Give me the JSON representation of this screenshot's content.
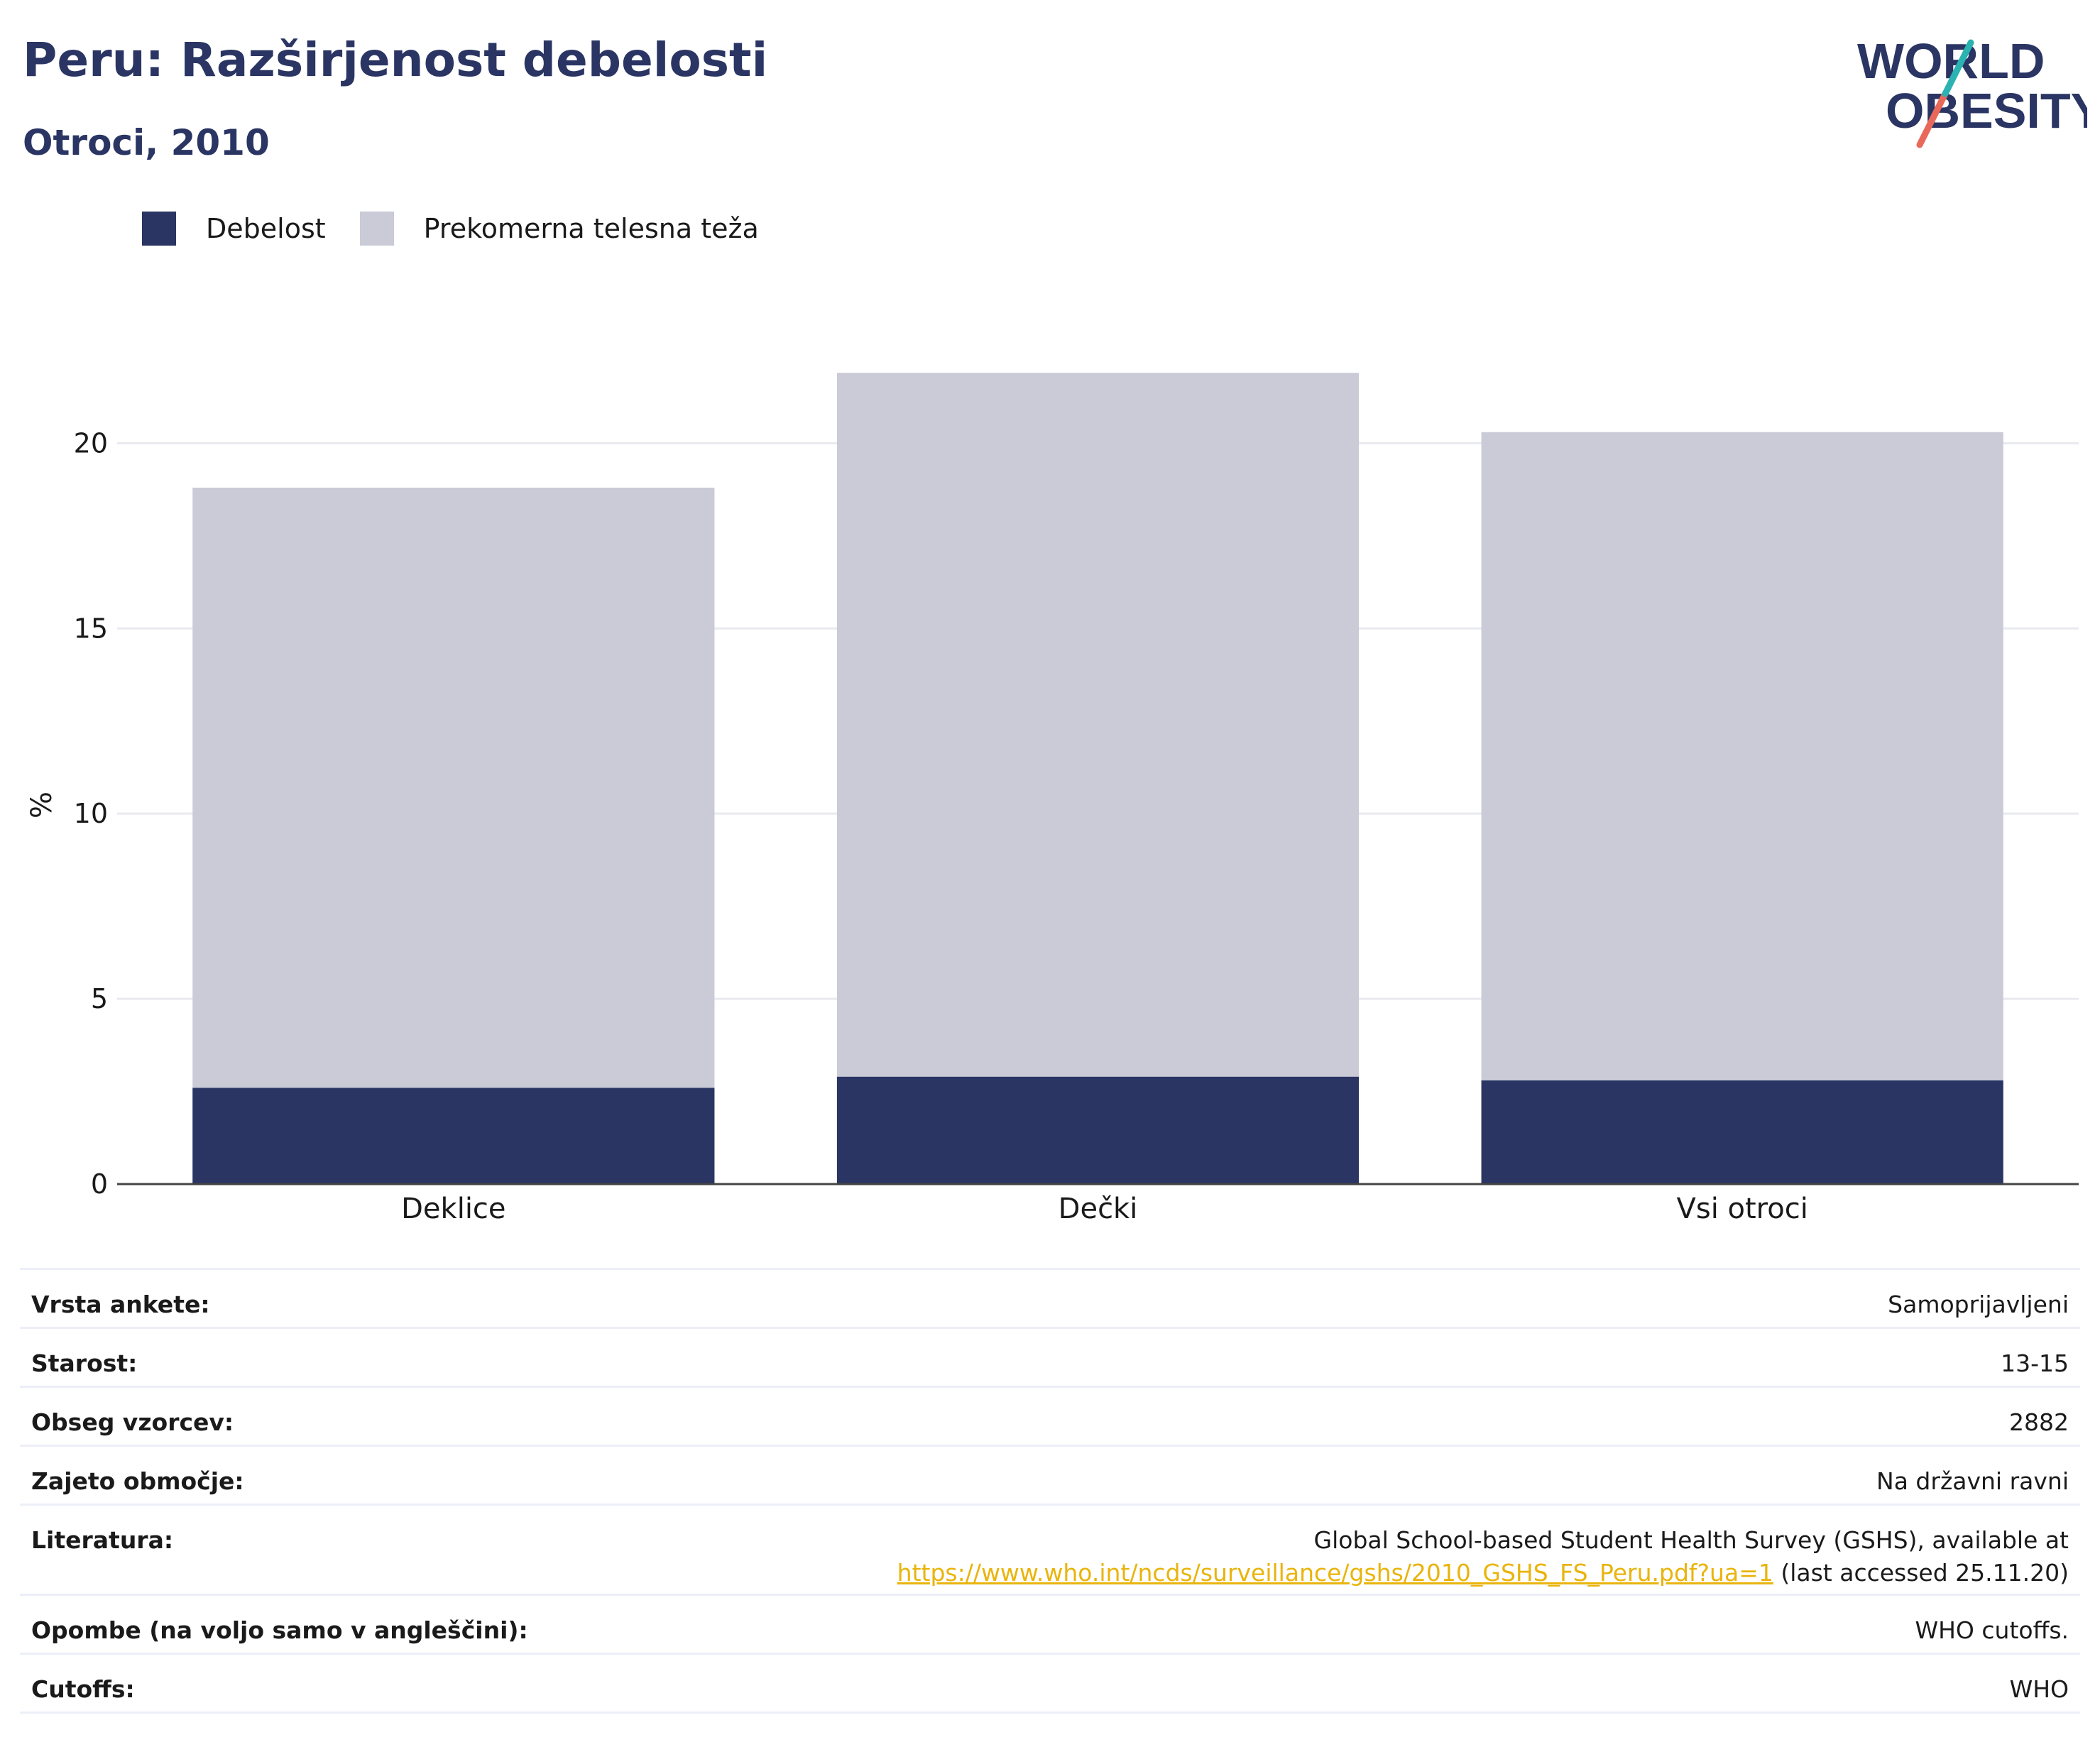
{
  "title": "Peru: Razširjenost debelosti",
  "subtitle": "Otroci, 2010",
  "logo": {
    "line1": "WORLD",
    "line2": "OBESITY"
  },
  "colors": {
    "obesity": "#2a3563",
    "overweight": "#cacbd7",
    "title": "#2a3563",
    "link": "#e9b40c"
  },
  "chart_data": {
    "type": "bar",
    "stacked": true,
    "categories": [
      "Deklice",
      "Dečki",
      "Vsi otroci"
    ],
    "series": [
      {
        "name": "Debelost",
        "values": [
          2.6,
          2.9,
          2.8
        ]
      },
      {
        "name": "Prekomerna telesna teža",
        "values": [
          16.2,
          19.0,
          17.5
        ]
      }
    ],
    "ylabel": "%",
    "ylim": [
      0,
      22
    ],
    "yticks": [
      "0",
      "5",
      "10",
      "15",
      "20"
    ],
    "grid": true,
    "legend": "top-left"
  },
  "info": {
    "rows": [
      {
        "label": "Vrsta ankete:",
        "value": "Samoprijavljeni"
      },
      {
        "label": "Starost:",
        "value": "13-15"
      },
      {
        "label": "Obseg vzorcev:",
        "value": "2882"
      },
      {
        "label": "Zajeto območje:",
        "value": "Na državni ravni"
      }
    ],
    "literature": {
      "label": "Literatura:",
      "text1": "Global School-based Student Health Survey (GSHS), available at",
      "link": "https://www.who.int/ncds/surveillance/gshs/2010_GSHS_FS_Peru.pdf?ua=1",
      "text2": " (last accessed 25.11.20)"
    },
    "rows2": [
      {
        "label": "Opombe (na voljo samo v angleščini):",
        "value": "WHO cutoffs."
      },
      {
        "label": "Cutoffs:",
        "value": "WHO"
      }
    ]
  }
}
